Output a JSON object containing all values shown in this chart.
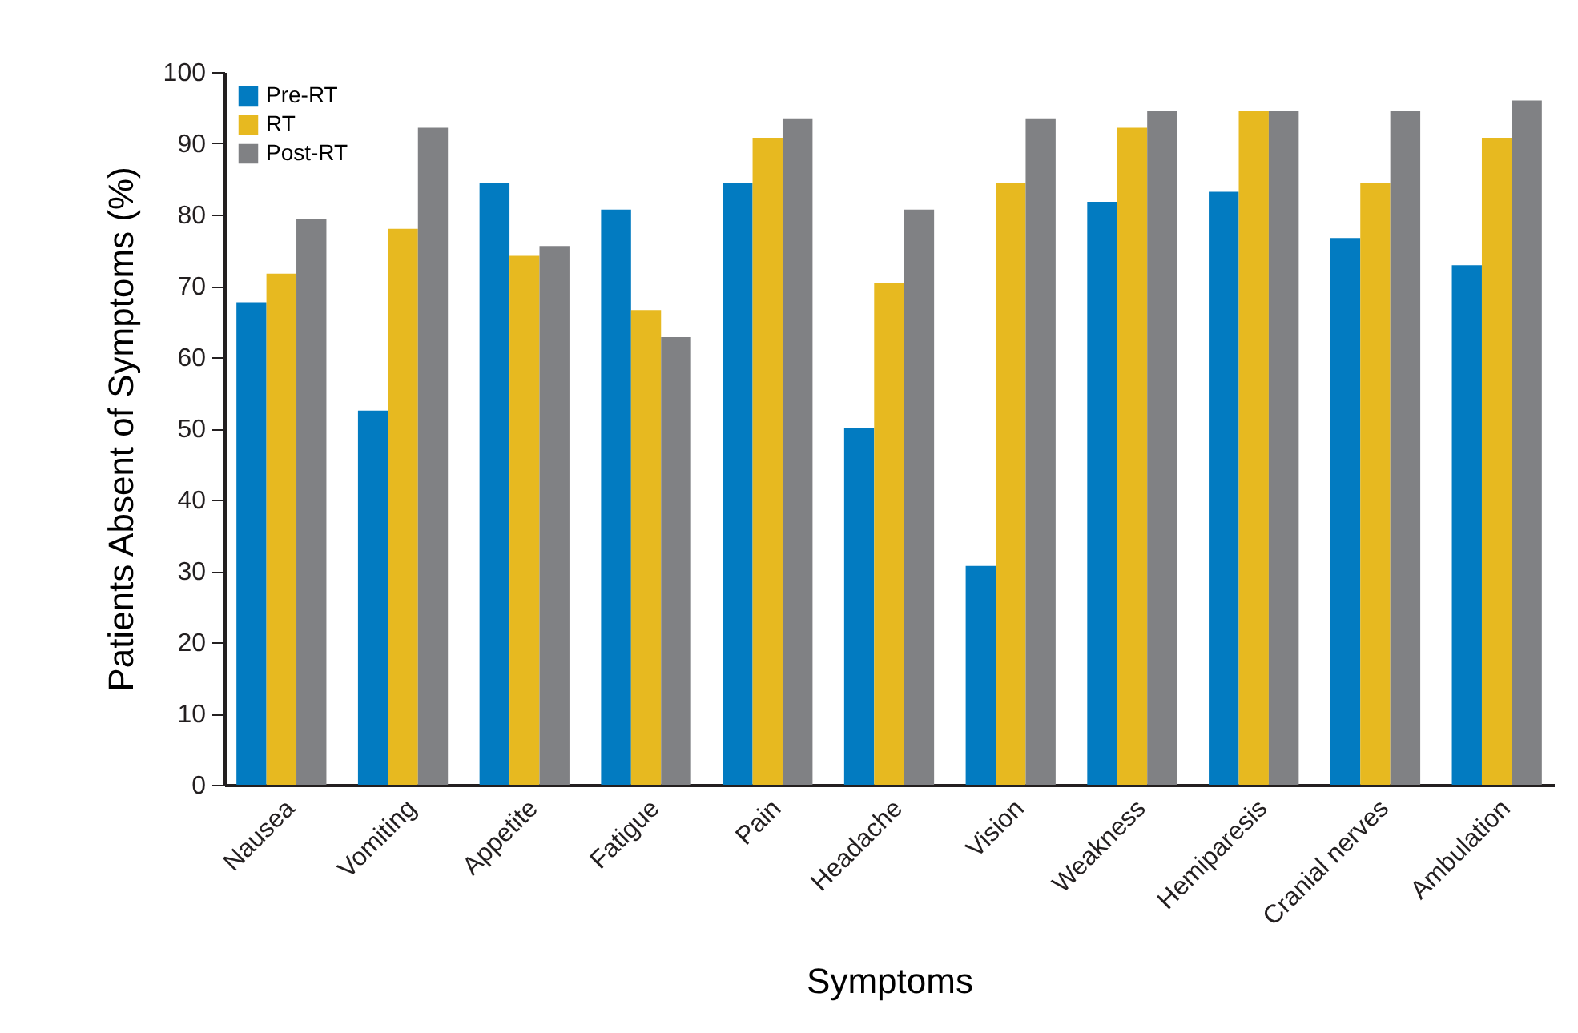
{
  "chart_data": {
    "type": "bar",
    "xlabel": "Symptoms",
    "ylabel": "Patients Absent of Symptoms (%)",
    "categories": [
      "Nausea",
      "Vomiting",
      "Appetite",
      "Fatigue",
      "Pain",
      "Headache",
      "Vision",
      "Weakness",
      "Hemiparesis",
      "Cranial nerves",
      "Ambulation"
    ],
    "series": [
      {
        "name": "Pre-RT",
        "color": "#027bc1",
        "values": [
          67.7,
          52.5,
          84.5,
          80.7,
          84.5,
          50.0,
          30.7,
          81.8,
          83.2,
          76.7,
          72.9
        ]
      },
      {
        "name": "RT",
        "color": "#e7b920",
        "values": [
          71.7,
          78.0,
          74.2,
          66.6,
          90.8,
          70.4,
          84.5,
          92.2,
          94.6,
          84.5,
          90.8
        ]
      },
      {
        "name": "Post-RT",
        "color": "#808184",
        "values": [
          79.4,
          92.2,
          75.6,
          62.8,
          93.5,
          80.7,
          93.5,
          94.6,
          94.6,
          94.6,
          96.0
        ]
      }
    ],
    "ylim": [
      0,
      100
    ],
    "yticks": [
      0,
      10,
      20,
      30,
      40,
      50,
      60,
      70,
      80,
      90,
      100
    ],
    "grid": false,
    "legend": "top left"
  }
}
